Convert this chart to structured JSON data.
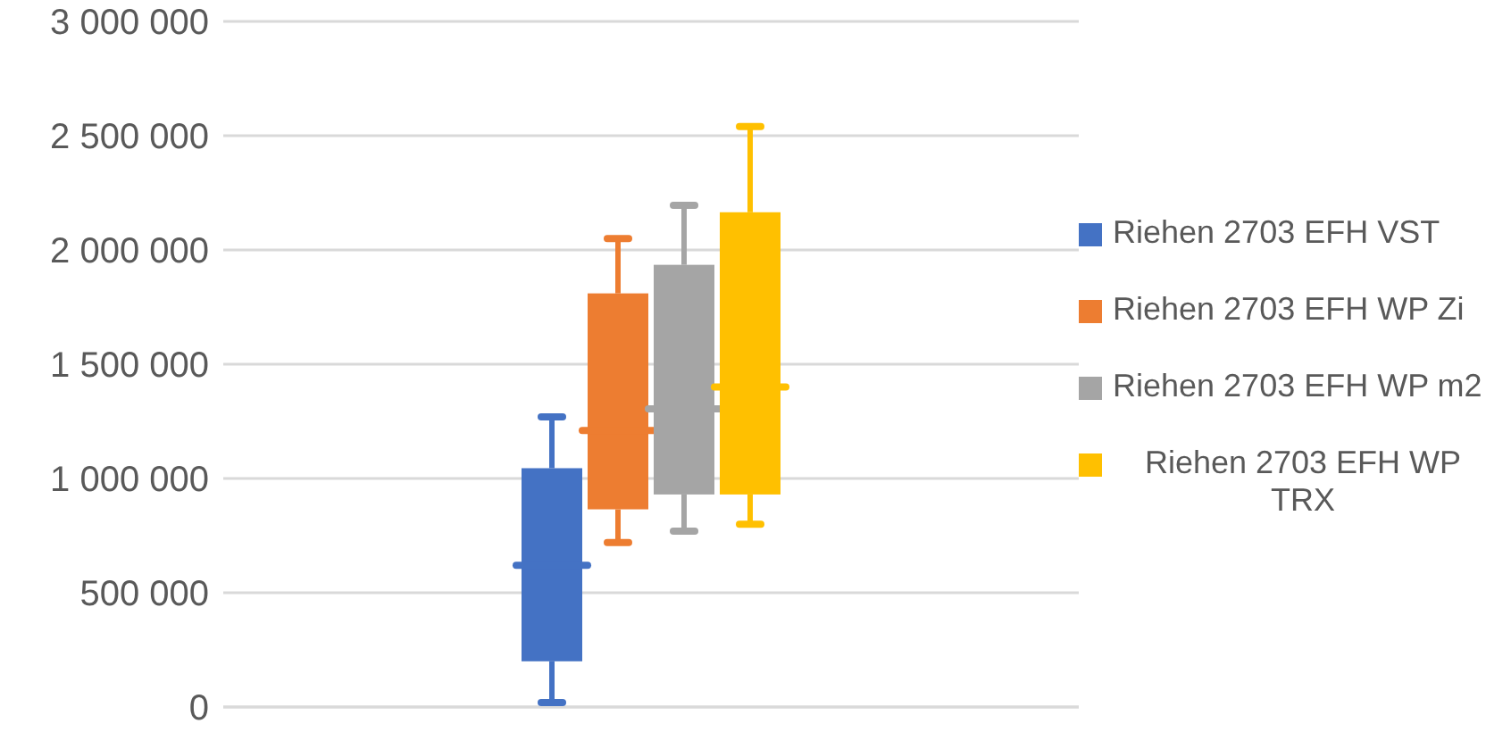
{
  "chart_data": {
    "type": "box",
    "categories": [
      null
    ],
    "series": [
      {
        "name": "Riehen 2703 EFH VST",
        "color": "#4472c4",
        "boxes": [
          {
            "low": 20000,
            "q1": 200000,
            "median": 620000,
            "q3": 1045000,
            "high": 1270000
          }
        ]
      },
      {
        "name": "Riehen 2703 EFH WP Zi",
        "color": "#ed7d31",
        "boxes": [
          {
            "low": 720000,
            "q1": 865000,
            "median": 1210000,
            "q3": 1810000,
            "high": 2050000
          }
        ]
      },
      {
        "name": "Riehen 2703 EFH WP m2",
        "color": "#a5a5a5",
        "boxes": [
          {
            "low": 770000,
            "q1": 930000,
            "median": 1305000,
            "q3": 1935000,
            "high": 2195000
          }
        ]
      },
      {
        "name": "Riehen 2703 EFH WP TRX",
        "color": "#ffc000",
        "boxes": [
          {
            "low": 800000,
            "q1": 930000,
            "median": 1400000,
            "q3": 2165000,
            "high": 2540000
          }
        ]
      }
    ],
    "ylim": [
      0,
      3000000
    ],
    "yticks": [
      {
        "value": 0,
        "label": "0"
      },
      {
        "value": 500000,
        "label": "500 000"
      },
      {
        "value": 1000000,
        "label": "1 000 000"
      },
      {
        "value": 1500000,
        "label": "1 500 000"
      },
      {
        "value": 2000000,
        "label": "2 000 000"
      },
      {
        "value": 2500000,
        "label": "2 500 000"
      },
      {
        "value": 3000000,
        "label": "3 000 000"
      }
    ],
    "grid": "y",
    "legend": "right"
  }
}
